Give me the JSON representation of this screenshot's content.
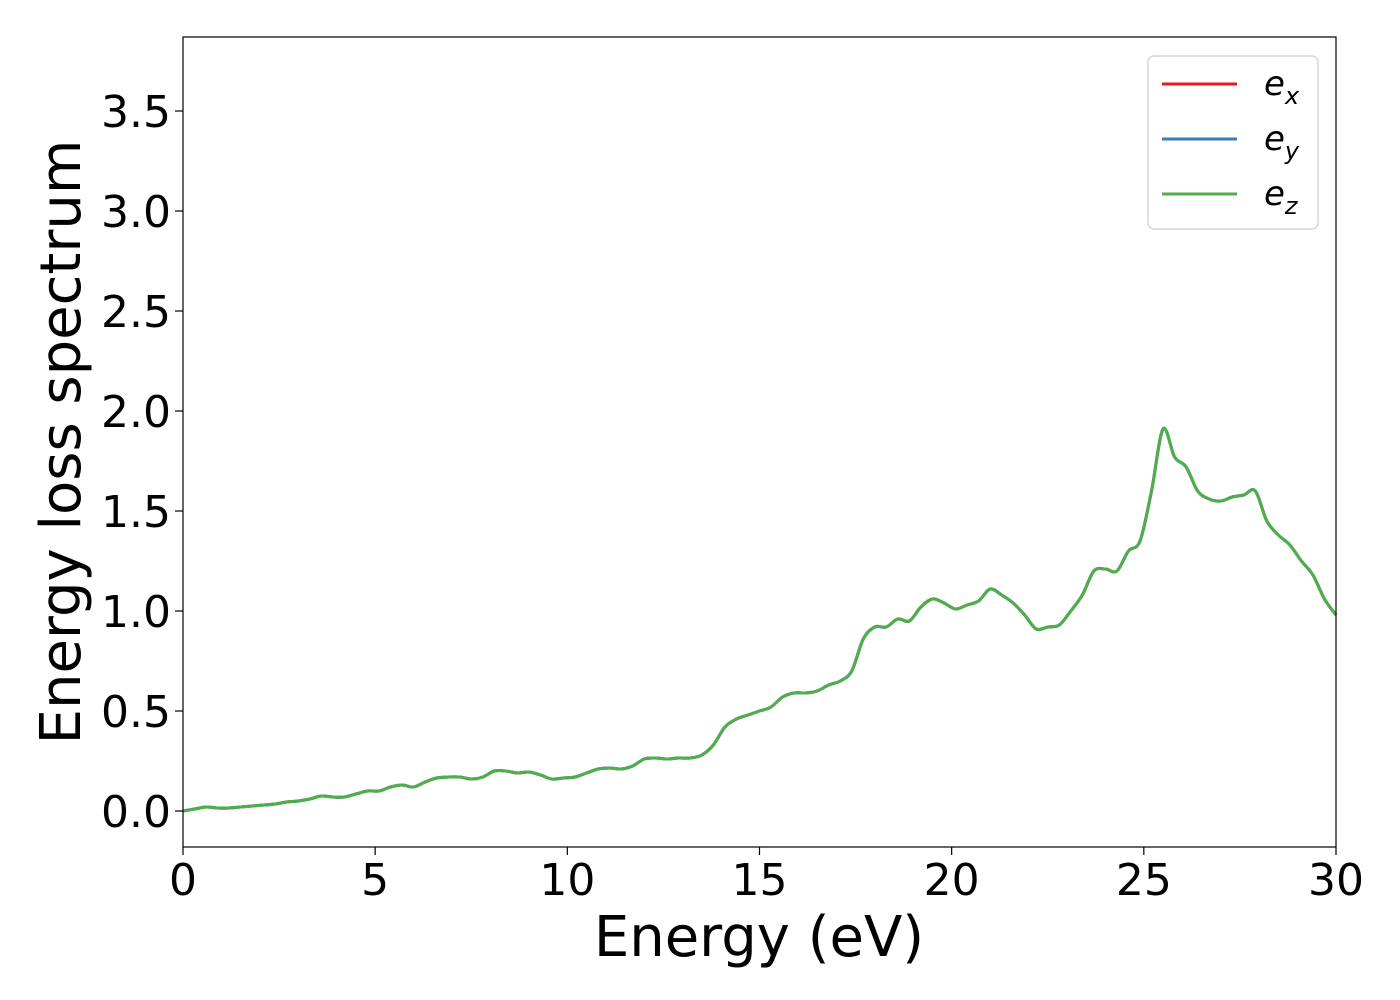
{
  "chart_data": {
    "type": "line",
    "xlabel": "Energy (eV)",
    "ylabel": "Energy loss spectrum",
    "xlim": [
      0,
      30
    ],
    "ylim": [
      -0.18,
      3.87
    ],
    "xticks": [
      0,
      5,
      10,
      15,
      20,
      25,
      30
    ],
    "xtick_labels": [
      "0",
      "5",
      "10",
      "15",
      "20",
      "25",
      "30"
    ],
    "yticks": [
      0.0,
      0.5,
      1.0,
      1.5,
      2.0,
      2.5,
      3.0,
      3.5
    ],
    "ytick_labels": [
      "0.0",
      "0.5",
      "1.0",
      "1.5",
      "2.0",
      "2.5",
      "3.0",
      "3.5"
    ],
    "grid": false,
    "legend_position": "top-right",
    "x": [
      0,
      0.3,
      0.6,
      0.9,
      1.2,
      1.5,
      1.8,
      2.1,
      2.4,
      2.7,
      3.0,
      3.3,
      3.6,
      3.9,
      4.2,
      4.5,
      4.8,
      5.1,
      5.4,
      5.7,
      6.0,
      6.3,
      6.6,
      6.9,
      7.2,
      7.5,
      7.8,
      8.1,
      8.4,
      8.7,
      9.0,
      9.3,
      9.6,
      9.9,
      10.2,
      10.5,
      10.8,
      11.1,
      11.4,
      11.7,
      12.0,
      12.3,
      12.6,
      12.9,
      13.2,
      13.5,
      13.8,
      14.1,
      14.4,
      14.7,
      15.0,
      15.3,
      15.6,
      15.9,
      16.2,
      16.5,
      16.8,
      17.1,
      17.4,
      17.7,
      18.0,
      18.3,
      18.6,
      18.9,
      19.2,
      19.5,
      19.8,
      20.1,
      20.4,
      20.7,
      21.0,
      21.3,
      21.6,
      21.9,
      22.2,
      22.5,
      22.8,
      23.1,
      23.4,
      23.7,
      24.0,
      24.3,
      24.6,
      24.9,
      25.2,
      25.5,
      25.8,
      26.1,
      26.4,
      26.7,
      27.0,
      27.3,
      27.6,
      27.9,
      28.2,
      28.5,
      28.8,
      29.1,
      29.4,
      29.7,
      30.0
    ],
    "series": [
      {
        "name": "x",
        "color": "#e41a1c",
        "values": [
          0.0,
          0.01,
          0.02,
          0.015,
          0.015,
          0.02,
          0.025,
          0.03,
          0.035,
          0.045,
          0.05,
          0.06,
          0.075,
          0.07,
          0.07,
          0.085,
          0.1,
          0.1,
          0.12,
          0.13,
          0.12,
          0.145,
          0.165,
          0.17,
          0.17,
          0.16,
          0.17,
          0.2,
          0.2,
          0.19,
          0.195,
          0.18,
          0.16,
          0.165,
          0.17,
          0.19,
          0.21,
          0.215,
          0.21,
          0.225,
          0.26,
          0.265,
          0.26,
          0.265,
          0.265,
          0.28,
          0.33,
          0.42,
          0.46,
          0.48,
          0.5,
          0.52,
          0.57,
          0.59,
          0.59,
          0.6,
          0.63,
          0.65,
          0.7,
          0.86,
          0.92,
          0.92,
          0.96,
          0.95,
          1.02,
          1.06,
          1.04,
          1.01,
          1.03,
          1.05,
          1.11,
          1.08,
          1.04,
          0.98,
          0.91,
          0.92,
          0.93,
          1.0,
          1.08,
          1.2,
          1.21,
          1.2,
          1.3,
          1.35,
          1.6,
          1.91,
          1.77,
          1.72,
          1.6,
          1.56,
          1.55,
          1.57,
          1.58,
          1.6,
          1.45,
          1.38,
          1.33,
          1.25,
          1.18,
          1.06,
          0.98
        ]
      },
      {
        "name": "y",
        "color": "#377eb8",
        "values": [
          0.0,
          0.01,
          0.02,
          0.015,
          0.015,
          0.02,
          0.025,
          0.03,
          0.035,
          0.045,
          0.05,
          0.06,
          0.075,
          0.07,
          0.07,
          0.085,
          0.1,
          0.1,
          0.12,
          0.13,
          0.12,
          0.145,
          0.165,
          0.17,
          0.17,
          0.16,
          0.17,
          0.2,
          0.2,
          0.19,
          0.195,
          0.18,
          0.16,
          0.165,
          0.17,
          0.19,
          0.21,
          0.215,
          0.21,
          0.225,
          0.26,
          0.265,
          0.26,
          0.265,
          0.265,
          0.28,
          0.33,
          0.42,
          0.46,
          0.48,
          0.5,
          0.52,
          0.57,
          0.59,
          0.59,
          0.6,
          0.63,
          0.65,
          0.7,
          0.86,
          0.92,
          0.92,
          0.96,
          0.95,
          1.02,
          1.06,
          1.04,
          1.01,
          1.03,
          1.05,
          1.11,
          1.08,
          1.04,
          0.98,
          0.91,
          0.92,
          0.93,
          1.0,
          1.08,
          1.2,
          1.21,
          1.2,
          1.3,
          1.35,
          1.6,
          1.91,
          1.77,
          1.72,
          1.6,
          1.56,
          1.55,
          1.57,
          1.58,
          1.6,
          1.45,
          1.38,
          1.33,
          1.25,
          1.18,
          1.06,
          0.98
        ]
      },
      {
        "name": "z",
        "color": "#4daf4a",
        "values": [
          0.0,
          0.01,
          0.02,
          0.015,
          0.015,
          0.02,
          0.025,
          0.03,
          0.035,
          0.045,
          0.05,
          0.06,
          0.075,
          0.07,
          0.07,
          0.085,
          0.1,
          0.1,
          0.12,
          0.13,
          0.12,
          0.145,
          0.165,
          0.17,
          0.17,
          0.16,
          0.17,
          0.2,
          0.2,
          0.19,
          0.195,
          0.18,
          0.16,
          0.165,
          0.17,
          0.19,
          0.21,
          0.215,
          0.21,
          0.225,
          0.26,
          0.265,
          0.26,
          0.265,
          0.265,
          0.28,
          0.33,
          0.42,
          0.46,
          0.48,
          0.5,
          0.52,
          0.57,
          0.59,
          0.59,
          0.6,
          0.63,
          0.65,
          0.7,
          0.86,
          0.92,
          0.92,
          0.96,
          0.95,
          1.02,
          1.06,
          1.04,
          1.01,
          1.03,
          1.05,
          1.11,
          1.08,
          1.04,
          0.98,
          0.91,
          0.92,
          0.93,
          1.0,
          1.08,
          1.2,
          1.21,
          1.2,
          1.3,
          1.35,
          1.6,
          1.91,
          1.77,
          1.72,
          1.6,
          1.56,
          1.55,
          1.57,
          1.58,
          1.6,
          1.45,
          1.38,
          1.33,
          1.25,
          1.18,
          1.06,
          0.98
        ]
      }
    ],
    "legend": [
      {
        "base": "e",
        "sub": "x",
        "color": "#e41a1c"
      },
      {
        "base": "e",
        "sub": "y",
        "color": "#377eb8"
      },
      {
        "base": "e",
        "sub": "z",
        "color": "#4daf4a"
      }
    ]
  }
}
